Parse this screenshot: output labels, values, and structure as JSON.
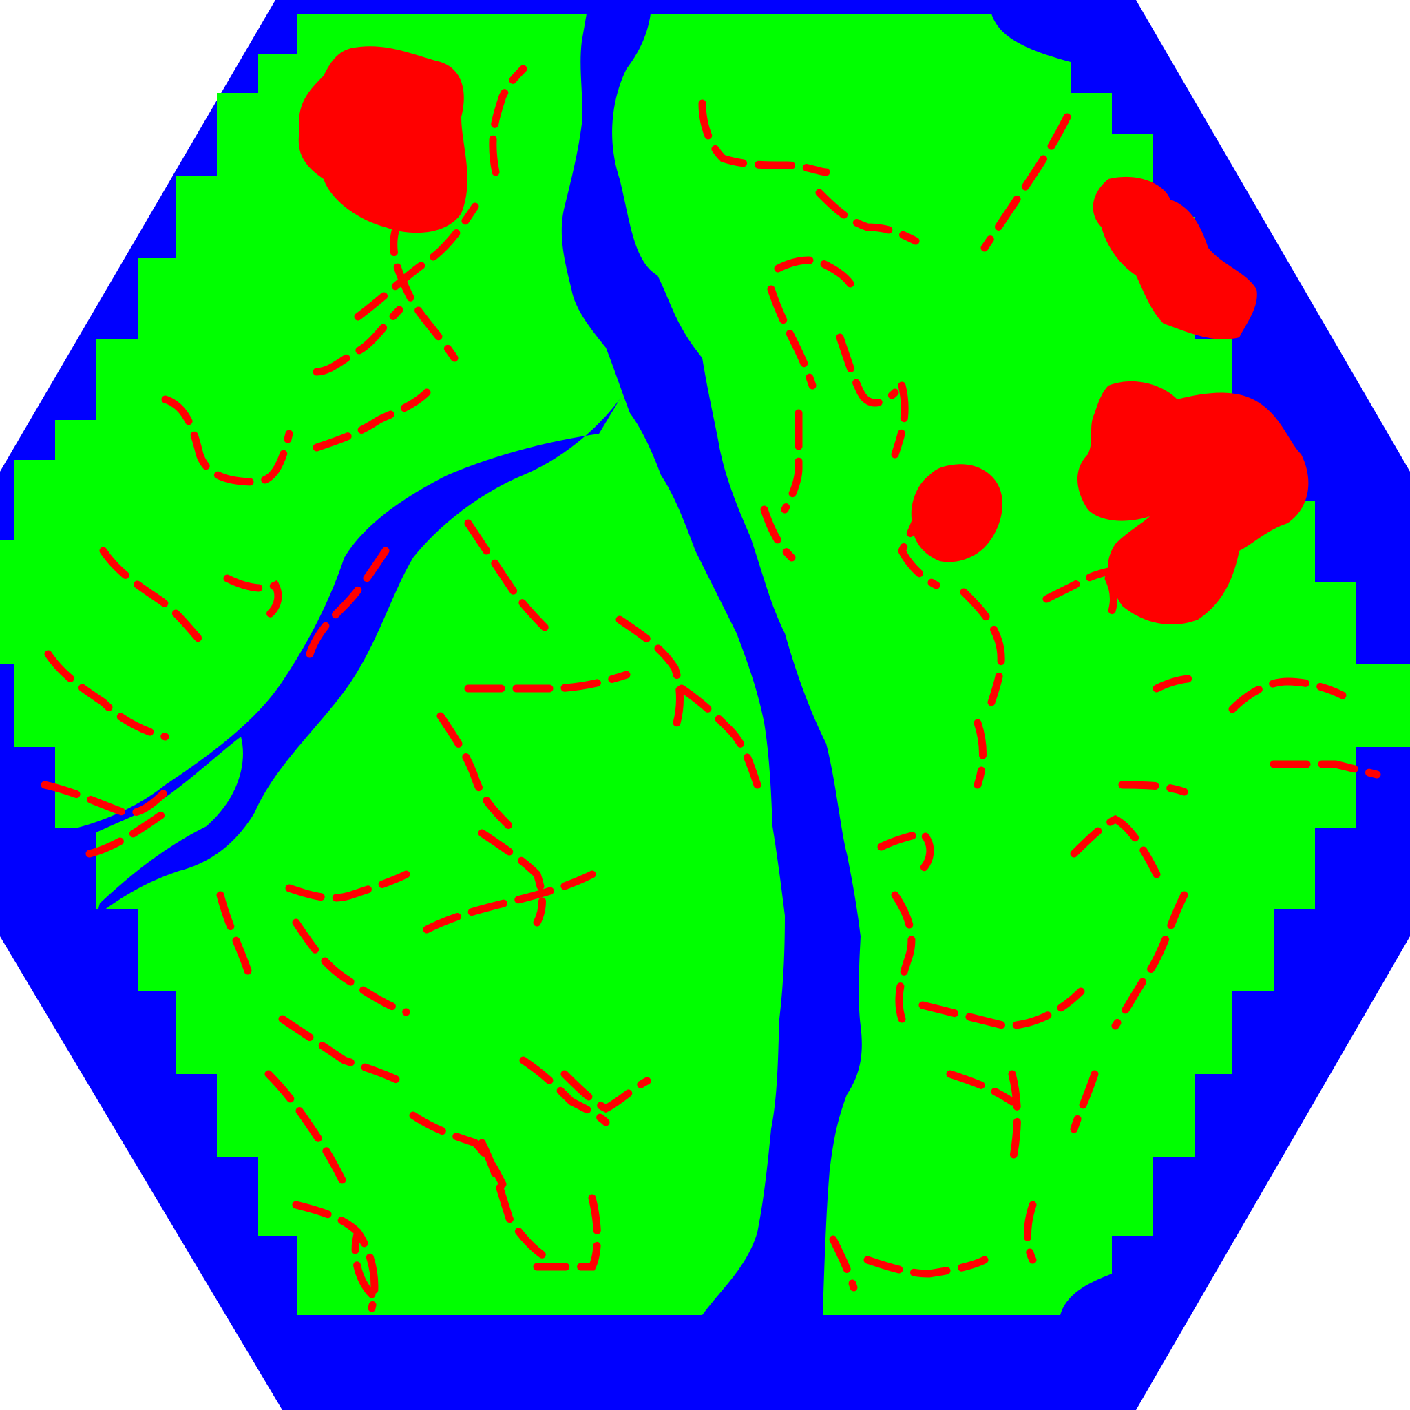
{
  "map": {
    "kind": "terrain-segmentation",
    "colors": {
      "background": "#ffffff",
      "water": "#0000ff",
      "land": "#00ff00",
      "feature": "#ff0000"
    },
    "legend_visible": false,
    "labels_visible": false,
    "regions": [
      {
        "name": "northwest-landmass",
        "class": "land"
      },
      {
        "name": "north-central-landmass",
        "class": "land"
      },
      {
        "name": "south-central-landmass",
        "class": "land"
      },
      {
        "name": "east-landmass",
        "class": "land"
      },
      {
        "name": "central-river",
        "class": "water"
      },
      {
        "name": "western-river",
        "class": "water"
      },
      {
        "name": "outer-water-ring",
        "class": "water"
      }
    ]
  }
}
